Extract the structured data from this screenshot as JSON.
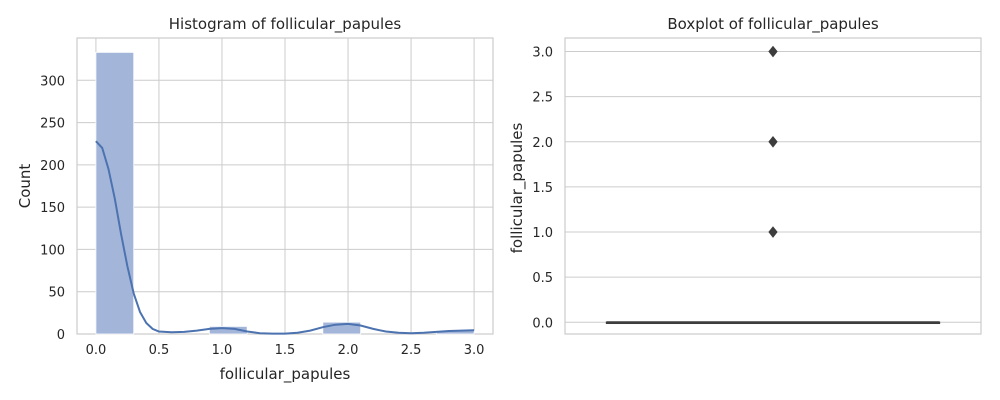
{
  "chart_data": [
    {
      "type": "bar",
      "title": "Histogram of follicular_papules",
      "xlabel": "follicular_papules",
      "ylabel": "Count",
      "xlim": [
        -0.15,
        3.15
      ],
      "ylim": [
        0,
        350
      ],
      "x_ticks": [
        "0.0",
        "0.5",
        "1.0",
        "1.5",
        "2.0",
        "2.5",
        "3.0"
      ],
      "y_ticks": [
        "0",
        "50",
        "100",
        "150",
        "200",
        "250",
        "300"
      ],
      "bins": [
        {
          "x0": 0.0,
          "x1": 0.3,
          "count": 333
        },
        {
          "x0": 0.3,
          "x1": 0.6,
          "count": 0
        },
        {
          "x0": 0.6,
          "x1": 0.9,
          "count": 0
        },
        {
          "x0": 0.9,
          "x1": 1.2,
          "count": 9
        },
        {
          "x0": 1.2,
          "x1": 1.5,
          "count": 0
        },
        {
          "x0": 1.5,
          "x1": 1.8,
          "count": 0
        },
        {
          "x0": 1.8,
          "x1": 2.1,
          "count": 14
        },
        {
          "x0": 2.1,
          "x1": 2.4,
          "count": 0
        },
        {
          "x0": 2.4,
          "x1": 2.7,
          "count": 0
        },
        {
          "x0": 2.7,
          "x1": 3.0,
          "count": 4
        }
      ],
      "kde": [
        [
          0.0,
          228
        ],
        [
          0.05,
          220
        ],
        [
          0.1,
          195
        ],
        [
          0.15,
          160
        ],
        [
          0.2,
          118
        ],
        [
          0.25,
          80
        ],
        [
          0.3,
          48
        ],
        [
          0.35,
          26
        ],
        [
          0.4,
          13
        ],
        [
          0.45,
          6
        ],
        [
          0.5,
          3
        ],
        [
          0.6,
          2
        ],
        [
          0.7,
          2.5
        ],
        [
          0.8,
          4
        ],
        [
          0.9,
          6
        ],
        [
          1.0,
          7
        ],
        [
          1.1,
          6
        ],
        [
          1.2,
          3
        ],
        [
          1.3,
          1
        ],
        [
          1.4,
          0.5
        ],
        [
          1.5,
          0.5
        ],
        [
          1.6,
          1.5
        ],
        [
          1.7,
          4
        ],
        [
          1.8,
          8
        ],
        [
          1.9,
          11
        ],
        [
          2.0,
          12
        ],
        [
          2.1,
          10
        ],
        [
          2.2,
          6
        ],
        [
          2.3,
          3
        ],
        [
          2.4,
          1.5
        ],
        [
          2.5,
          1
        ],
        [
          2.6,
          1.5
        ],
        [
          2.7,
          2.5
        ],
        [
          2.8,
          3.5
        ],
        [
          2.9,
          4
        ],
        [
          3.0,
          4.5
        ]
      ],
      "grid": true,
      "bar_color": "#a3b6da",
      "line_color": "#4c72b0"
    },
    {
      "type": "box",
      "title": "Boxplot of follicular_papules",
      "ylabel": "follicular_papules",
      "ylim": [
        -0.13,
        3.15
      ],
      "y_ticks": [
        "0.0",
        "0.5",
        "1.0",
        "1.5",
        "2.0",
        "2.5",
        "3.0"
      ],
      "box": {
        "min": 0.0,
        "q1": 0.0,
        "median": 0.0,
        "q3": 0.0,
        "max": 0.0
      },
      "outliers": [
        1.0,
        2.0,
        3.0
      ],
      "grid": true,
      "color": "#4c72b0"
    }
  ]
}
